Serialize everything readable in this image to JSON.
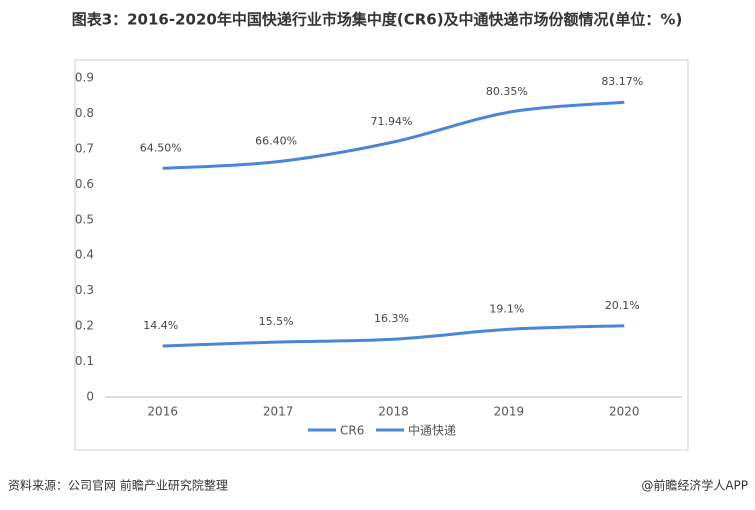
{
  "chart_data": {
    "type": "line",
    "title": "图表3：2016-2020年中国快递行业市场集中度(CR6)及中通快递市场份额情况(单位：%)",
    "categories": [
      "2016",
      "2017",
      "2018",
      "2019",
      "2020"
    ],
    "series": [
      {
        "name": "CR6",
        "color": "#4a86d6",
        "values": [
          0.645,
          0.664,
          0.7194,
          0.8035,
          0.8317
        ],
        "value_labels": [
          "64.50%",
          "66.40%",
          "71.94%",
          "80.35%",
          "83.17%"
        ]
      },
      {
        "name": "中通快递",
        "color": "#4a86d6",
        "values": [
          0.144,
          0.155,
          0.163,
          0.191,
          0.201
        ],
        "value_labels": [
          "14.4%",
          "15.5%",
          "16.3%",
          "19.1%",
          "20.1%"
        ]
      }
    ],
    "ylim": [
      0,
      0.9
    ],
    "yticks": [
      0,
      0.1,
      0.2,
      0.3,
      0.4,
      0.5,
      0.6,
      0.7,
      0.8,
      0.9
    ],
    "source": "资料来源：公司官网 前瞻产业研究院整理",
    "credit": "@前瞻经济学人APP"
  }
}
